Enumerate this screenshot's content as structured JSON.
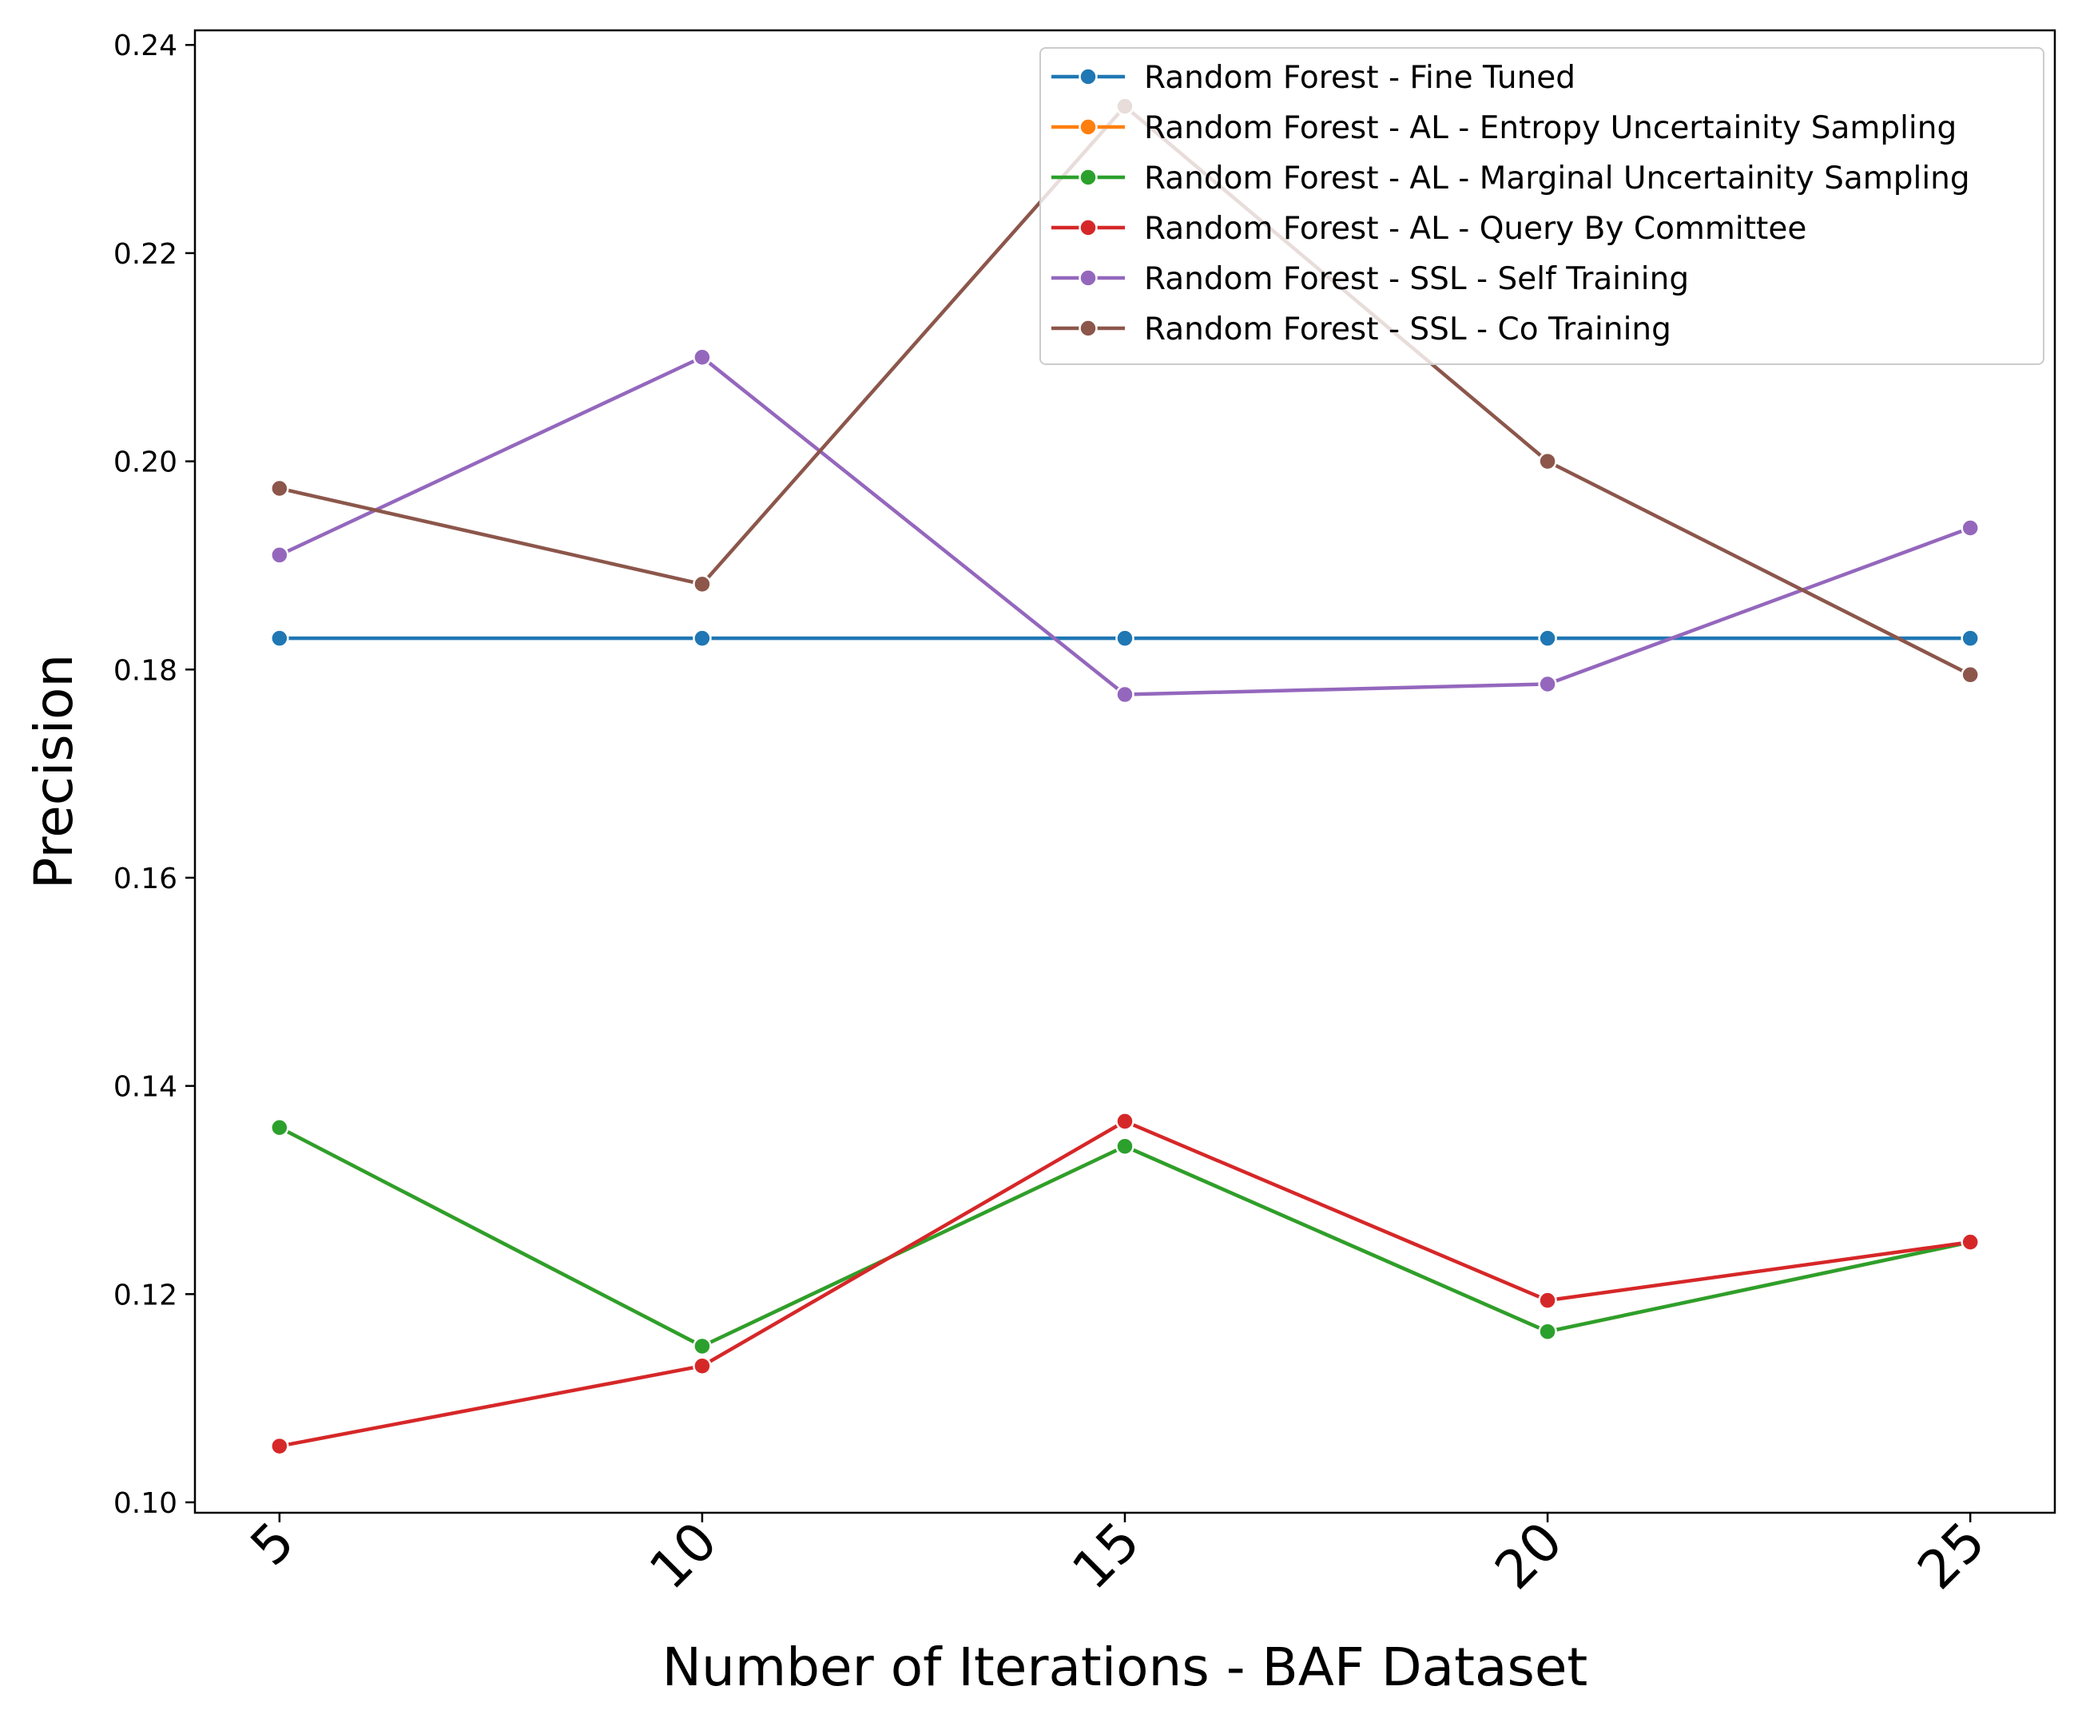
{
  "chart_data": {
    "type": "line",
    "title": "",
    "xlabel": "Number of Iterations - BAF Dataset",
    "ylabel": "Precision",
    "x": [
      5,
      10,
      15,
      20,
      25
    ],
    "x_tick_labels": [
      "5",
      "10",
      "15",
      "20",
      "25"
    ],
    "y_ticks": [
      0.1,
      0.12,
      0.14,
      0.16,
      0.18,
      0.2,
      0.22,
      0.24
    ],
    "y_tick_labels": [
      "0.10",
      "0.12",
      "0.14",
      "0.16",
      "0.18",
      "0.20",
      "0.22",
      "0.24"
    ],
    "xlim": [
      4.0,
      26.0
    ],
    "ylim": [
      0.099,
      0.2414
    ],
    "grid": false,
    "legend_position": "top-right",
    "series": [
      {
        "name": "Random Forest - Fine Tuned",
        "color": "#1f77b4",
        "values": [
          0.183,
          0.183,
          0.183,
          0.183,
          0.183
        ]
      },
      {
        "name": "Random Forest - AL - Entropy Uncertainity Sampling",
        "color": "#ff7f0e",
        "values": [
          0.136,
          0.115,
          0.1342,
          0.1164,
          0.125
        ]
      },
      {
        "name": "Random Forest - AL - Marginal Uncertainity Sampling",
        "color": "#2ca02c",
        "values": [
          0.136,
          0.115,
          0.1342,
          0.1164,
          0.125
        ]
      },
      {
        "name": "Random Forest - AL - Query By Committee",
        "color": "#d62728",
        "values": [
          0.1054,
          0.1131,
          0.1366,
          0.1194,
          0.125
        ]
      },
      {
        "name": "Random Forest - SSL - Self Training",
        "color": "#9467bd",
        "values": [
          0.191,
          0.21,
          0.1776,
          0.1786,
          0.1936
        ]
      },
      {
        "name": "Random Forest - SSL - Co Training",
        "color": "#8c564b",
        "values": [
          0.1974,
          0.1882,
          0.2341,
          0.2,
          0.1795
        ]
      }
    ]
  }
}
